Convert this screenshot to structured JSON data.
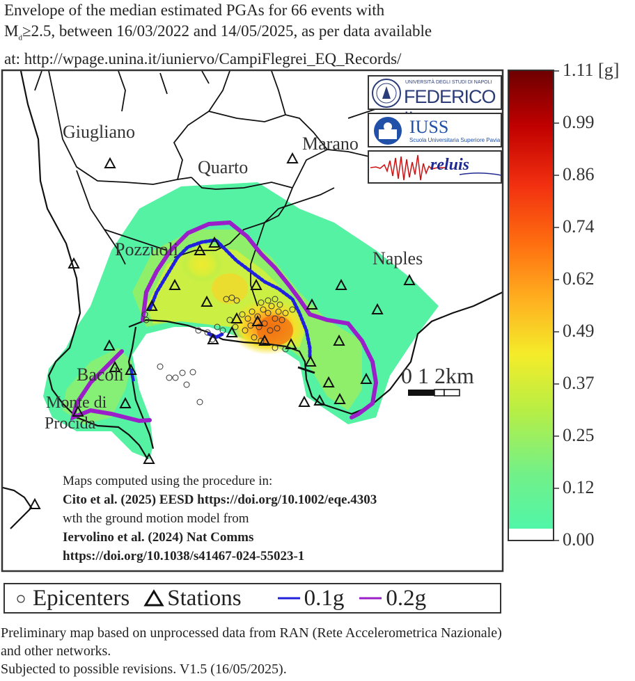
{
  "title": {
    "line1": "Envelope of the median estimated PGAs  for 66 events with",
    "line2_pre": "M",
    "line2_sub": "d",
    "line2_post": "≥2.5, between 16/03/2022 and 14/05/2025, as per data available",
    "line3": "at: http://wpage.unina.it/iuniervo/CampiFlegrei_EQ_Records/"
  },
  "colorbar": {
    "labels": [
      "1.11 [g]",
      "0.99",
      "0.86",
      "0.74",
      "0.62",
      "0.49",
      "0.37",
      "0.25",
      "0.12",
      "0.00"
    ],
    "colors": [
      "#7a0000",
      "#c00000",
      "#f23010",
      "#ff7010",
      "#ffc020",
      "#f4ec2a",
      "#b8ee44",
      "#72f088",
      "#50f6a8"
    ]
  },
  "towns": {
    "giugliano": "Giugliano",
    "quarto": "Quarto",
    "marano": "Marano",
    "pozzuoli": "Pozzuoli",
    "naples": "Naples",
    "bacoli": "Bacoli",
    "monte": "Monte di",
    "procida": "Procida"
  },
  "scalebar": {
    "label": "0  1  2km"
  },
  "logos": {
    "federico_small": "UNIVERSITÀ DEGLI STUDI DI NAPOLI",
    "federico": "FEDERICO II",
    "iuss": "IUSS",
    "iuss_sub": "Scuola Universitaria Superiore Pavia",
    "reluis": "reluis"
  },
  "note": {
    "line1": "Maps computed using the procedure in:",
    "line2": "Cito et al. (2025) EESD https://doi.org/10.1002/eqe.4303",
    "line3": "wth the ground motion model from",
    "line4": "Iervolino et al. (2024) Nat Comms",
    "line5": "https://doi.org/10.1038/s41467-024-55023-1"
  },
  "legend": {
    "epicenters": "Epicenters",
    "stations": "Stations",
    "line01": "0.1g",
    "line02": "0.2g",
    "color01": "#2020dd",
    "color02": "#9a1fc9"
  },
  "footer": {
    "line1": "Preliminary map based on unprocessed data from RAN (Rete Accelerometrica Nazionale)",
    "line2": "and other networks.",
    "line3": "Subjected to possible revisions. V1.5 (16/05/2025)."
  }
}
